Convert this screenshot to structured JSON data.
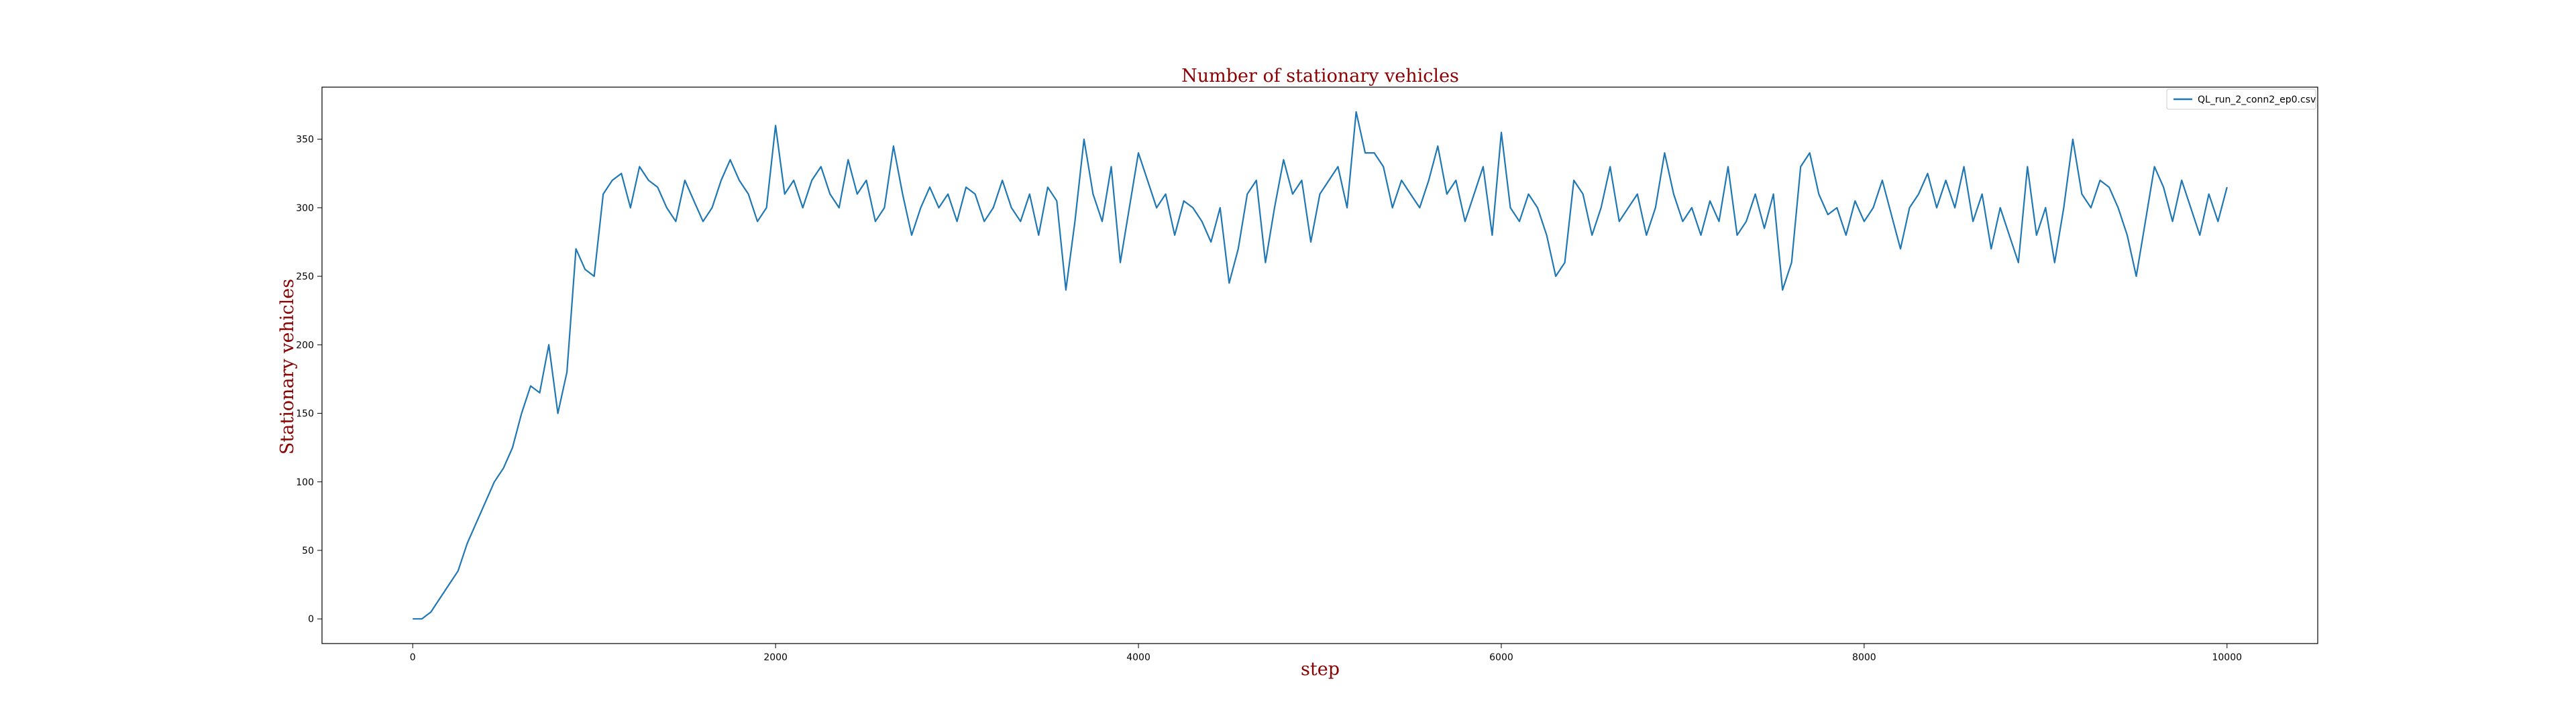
{
  "chart_data": {
    "type": "line",
    "title": "Number of stationary vehicles",
    "xlabel": "step",
    "ylabel": "Stationary vehicles",
    "xlim": [
      -500,
      10500
    ],
    "ylim": [
      -18,
      388
    ],
    "xticks": [
      0,
      2000,
      4000,
      6000,
      8000,
      10000
    ],
    "yticks": [
      0,
      50,
      100,
      150,
      200,
      250,
      300,
      350
    ],
    "grid": false,
    "legend_position": "top-right",
    "colors": {
      "series": "#1f77b4",
      "title": "#8b0000",
      "axis_labels": "#8b0000"
    },
    "series": [
      {
        "name": "QL_run_2_conn2_ep0.csv",
        "x": [
          0,
          50,
          100,
          150,
          200,
          250,
          300,
          350,
          400,
          450,
          500,
          550,
          600,
          650,
          700,
          750,
          800,
          850,
          900,
          950,
          1000,
          1050,
          1100,
          1150,
          1200,
          1250,
          1300,
          1350,
          1400,
          1450,
          1500,
          1550,
          1600,
          1650,
          1700,
          1750,
          1800,
          1850,
          1900,
          1950,
          2000,
          2050,
          2100,
          2150,
          2200,
          2250,
          2300,
          2350,
          2400,
          2450,
          2500,
          2550,
          2600,
          2650,
          2700,
          2750,
          2800,
          2850,
          2900,
          2950,
          3000,
          3050,
          3100,
          3150,
          3200,
          3250,
          3300,
          3350,
          3400,
          3450,
          3500,
          3550,
          3600,
          3650,
          3700,
          3750,
          3800,
          3850,
          3900,
          3950,
          4000,
          4050,
          4100,
          4150,
          4200,
          4250,
          4300,
          4350,
          4400,
          4450,
          4500,
          4550,
          4600,
          4650,
          4700,
          4750,
          4800,
          4850,
          4900,
          4950,
          5000,
          5050,
          5100,
          5150,
          5200,
          5250,
          5300,
          5350,
          5400,
          5450,
          5500,
          5550,
          5600,
          5650,
          5700,
          5750,
          5800,
          5850,
          5900,
          5950,
          6000,
          6050,
          6100,
          6150,
          6200,
          6250,
          6300,
          6350,
          6400,
          6450,
          6500,
          6550,
          6600,
          6650,
          6700,
          6750,
          6800,
          6850,
          6900,
          6950,
          7000,
          7050,
          7100,
          7150,
          7200,
          7250,
          7300,
          7350,
          7400,
          7450,
          7500,
          7550,
          7600,
          7650,
          7700,
          7750,
          7800,
          7850,
          7900,
          7950,
          8000,
          8050,
          8100,
          8150,
          8200,
          8250,
          8300,
          8350,
          8400,
          8450,
          8500,
          8550,
          8600,
          8650,
          8700,
          8750,
          8800,
          8850,
          8900,
          8950,
          9000,
          9050,
          9100,
          9150,
          9200,
          9250,
          9300,
          9350,
          9400,
          9450,
          9500,
          9550,
          9600,
          9650,
          9700,
          9750,
          9800,
          9850,
          9900,
          9950,
          10000
        ],
        "y": [
          0,
          0,
          5,
          15,
          25,
          35,
          55,
          70,
          85,
          100,
          110,
          125,
          150,
          170,
          165,
          200,
          150,
          180,
          270,
          255,
          250,
          310,
          320,
          325,
          300,
          330,
          320,
          315,
          300,
          290,
          320,
          305,
          290,
          300,
          320,
          335,
          320,
          310,
          290,
          300,
          360,
          310,
          320,
          300,
          320,
          330,
          310,
          300,
          335,
          310,
          320,
          290,
          300,
          345,
          310,
          280,
          300,
          315,
          300,
          310,
          290,
          315,
          310,
          290,
          300,
          320,
          300,
          290,
          310,
          280,
          315,
          305,
          240,
          290,
          350,
          310,
          290,
          330,
          260,
          300,
          340,
          320,
          300,
          310,
          280,
          305,
          300,
          290,
          275,
          300,
          245,
          270,
          310,
          320,
          260,
          300,
          335,
          310,
          320,
          275,
          310,
          320,
          330,
          300,
          370,
          340,
          340,
          330,
          300,
          320,
          310,
          300,
          320,
          345,
          310,
          320,
          290,
          310,
          330,
          280,
          355,
          300,
          290,
          310,
          300,
          280,
          250,
          260,
          320,
          310,
          280,
          300,
          330,
          290,
          300,
          310,
          280,
          300,
          340,
          310,
          290,
          300,
          280,
          305,
          290,
          330,
          280,
          290,
          310,
          285,
          310,
          240,
          260,
          330,
          340,
          310,
          295,
          300,
          280,
          305,
          290,
          300,
          320,
          295,
          270,
          300,
          310,
          325,
          300,
          320,
          300,
          330,
          290,
          310,
          270,
          300,
          280,
          260,
          330,
          280,
          300,
          260,
          300,
          350,
          310,
          300,
          320,
          315,
          300,
          280,
          250,
          290,
          330,
          315,
          290,
          320,
          300,
          280,
          310,
          290,
          315
        ]
      }
    ]
  }
}
